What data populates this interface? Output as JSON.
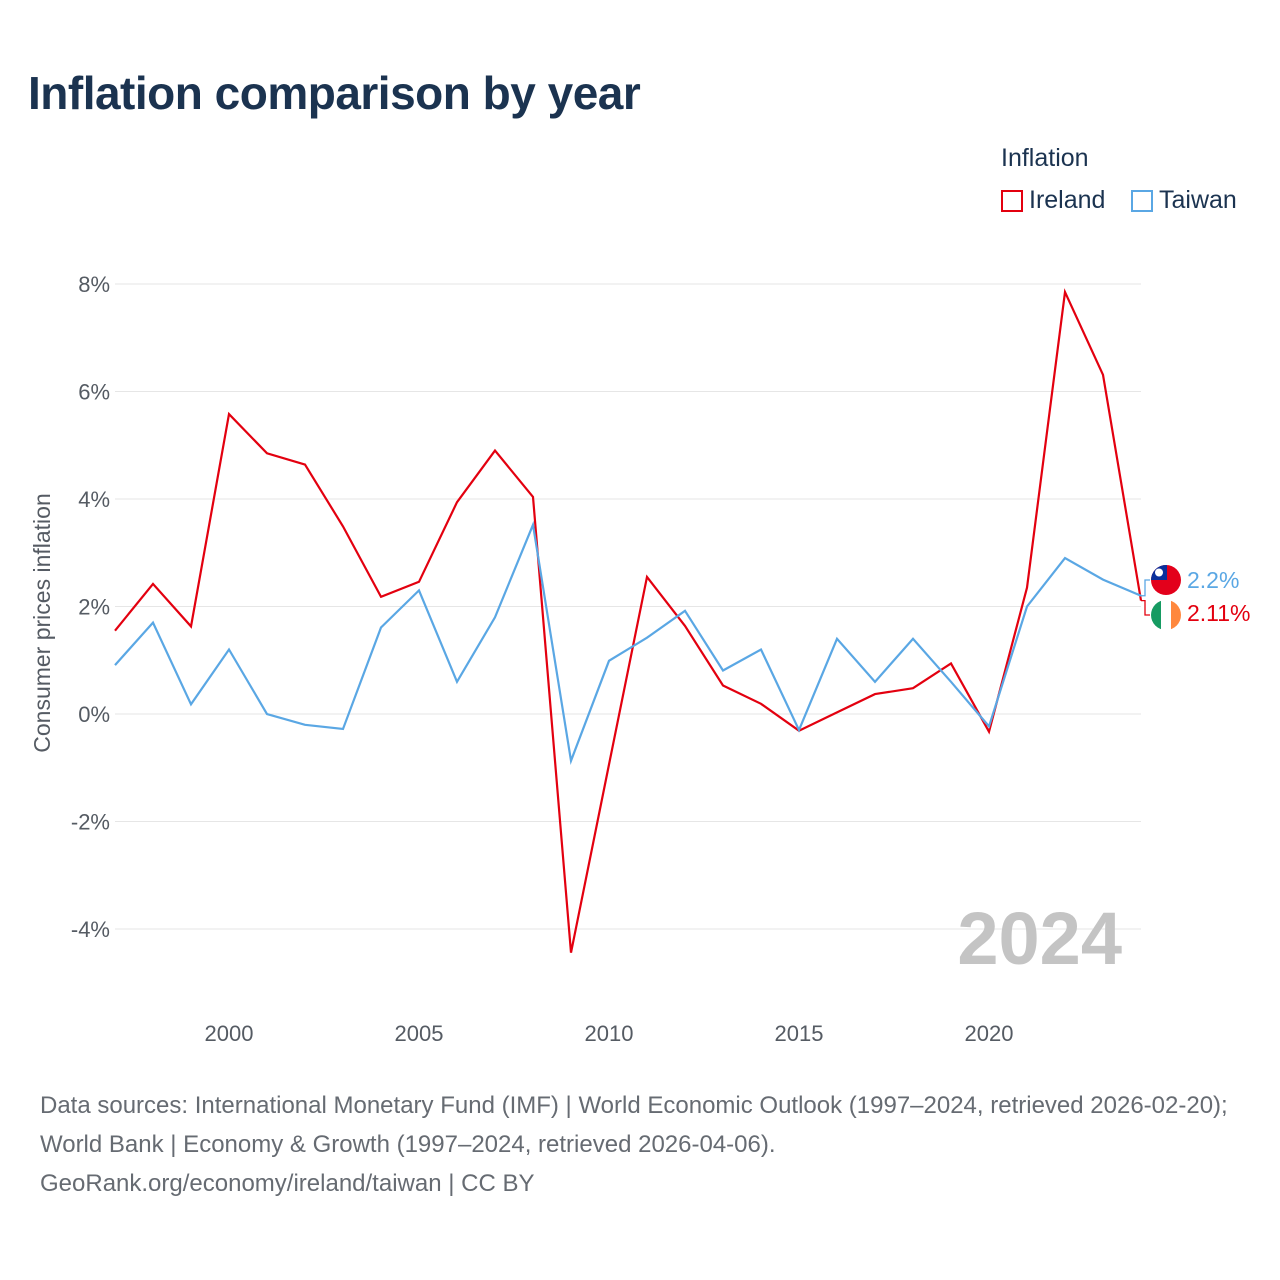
{
  "title": "Inflation comparison by year",
  "legend": {
    "title": "Inflation",
    "items": [
      {
        "name": "Ireland",
        "color": "#e3000f"
      },
      {
        "name": "Taiwan",
        "color": "#5aa7e4"
      }
    ]
  },
  "chart_data": {
    "type": "line",
    "title": "Inflation comparison by year",
    "ylabel": "Consumer prices inflation",
    "xlabel": "",
    "x": [
      1997,
      1998,
      1999,
      2000,
      2001,
      2002,
      2003,
      2004,
      2005,
      2006,
      2007,
      2008,
      2009,
      2010,
      2011,
      2012,
      2013,
      2014,
      2015,
      2016,
      2017,
      2018,
      2019,
      2020,
      2021,
      2022,
      2023,
      2024
    ],
    "series": [
      {
        "name": "Ireland",
        "color": "#e3000f",
        "values": [
          1.55,
          2.42,
          1.63,
          5.58,
          4.85,
          4.64,
          3.49,
          2.18,
          2.46,
          3.94,
          4.9,
          4.04,
          -4.44,
          -0.94,
          2.55,
          1.64,
          0.53,
          0.19,
          -0.31,
          0.03,
          0.37,
          0.48,
          0.94,
          -0.33,
          2.35,
          7.85,
          6.31,
          2.11
        ]
      },
      {
        "name": "Taiwan",
        "color": "#5aa7e4",
        "values": [
          0.91,
          1.7,
          0.18,
          1.2,
          0.0,
          -0.2,
          -0.28,
          1.61,
          2.3,
          0.6,
          1.8,
          3.52,
          -0.87,
          0.99,
          1.42,
          1.92,
          0.81,
          1.2,
          -0.3,
          1.4,
          0.6,
          1.4,
          0.6,
          -0.23,
          2.0,
          2.9,
          2.5,
          2.2
        ]
      }
    ],
    "ylim": [
      -4.5,
      8.4
    ],
    "yticks": [
      8,
      6,
      4,
      2,
      0,
      -2,
      -4
    ],
    "ytick_labels": [
      "8%",
      "6%",
      "4%",
      "2%",
      "0%",
      "-2%",
      "-4%"
    ],
    "xlim": [
      1997,
      2024
    ],
    "xticks": [
      2000,
      2005,
      2010,
      2015,
      2020
    ],
    "xtick_labels": [
      "2000",
      "2005",
      "2010",
      "2015",
      "2020"
    ],
    "grid": true,
    "year_watermark": "2024",
    "end_labels": [
      {
        "series": "Taiwan",
        "text": "2.2%",
        "flag_icon": "taiwan-flag-icon"
      },
      {
        "series": "Ireland",
        "text": "2.11%",
        "flag_icon": "ireland-flag-icon"
      }
    ]
  },
  "source": {
    "line1": "Data sources: International Monetary Fund (IMF) | World Economic Outlook (1997–2024, retrieved 2026-02-20); World Bank | Economy & Growth (1997–2024, retrieved 2026-04-06).",
    "line2": "GeoRank.org/economy/ireland/taiwan | CC BY"
  }
}
